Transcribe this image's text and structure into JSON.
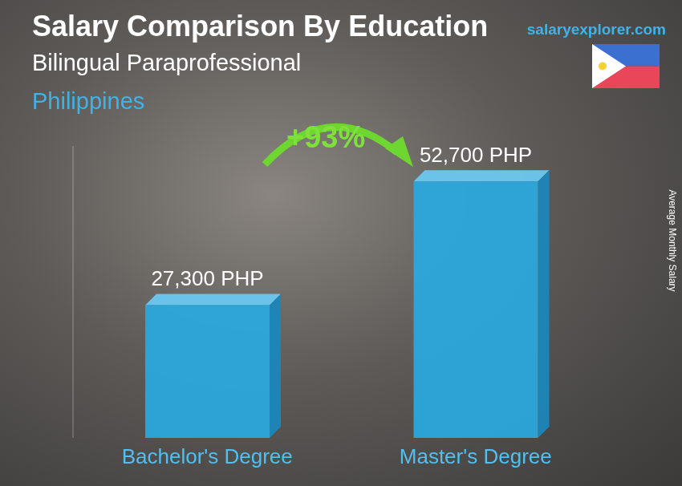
{
  "chart_data": {
    "type": "bar",
    "title": "Salary Comparison By Education",
    "subtitle": "Bilingual Paraprofessional",
    "region": "Philippines",
    "source": "salaryexplorer.com",
    "annotation": "+93%",
    "y_label": "Average Monthly Salary",
    "categories": [
      "Bachelor's Degree",
      "Master's Degree"
    ],
    "values": [
      27300,
      52700
    ],
    "value_labels": [
      "27,300 PHP",
      "52,700 PHP"
    ],
    "data_labels": true,
    "color": "#29a9e1",
    "ylim": [
      0,
      60000
    ],
    "grid": false,
    "tick_labels": "x"
  }
}
